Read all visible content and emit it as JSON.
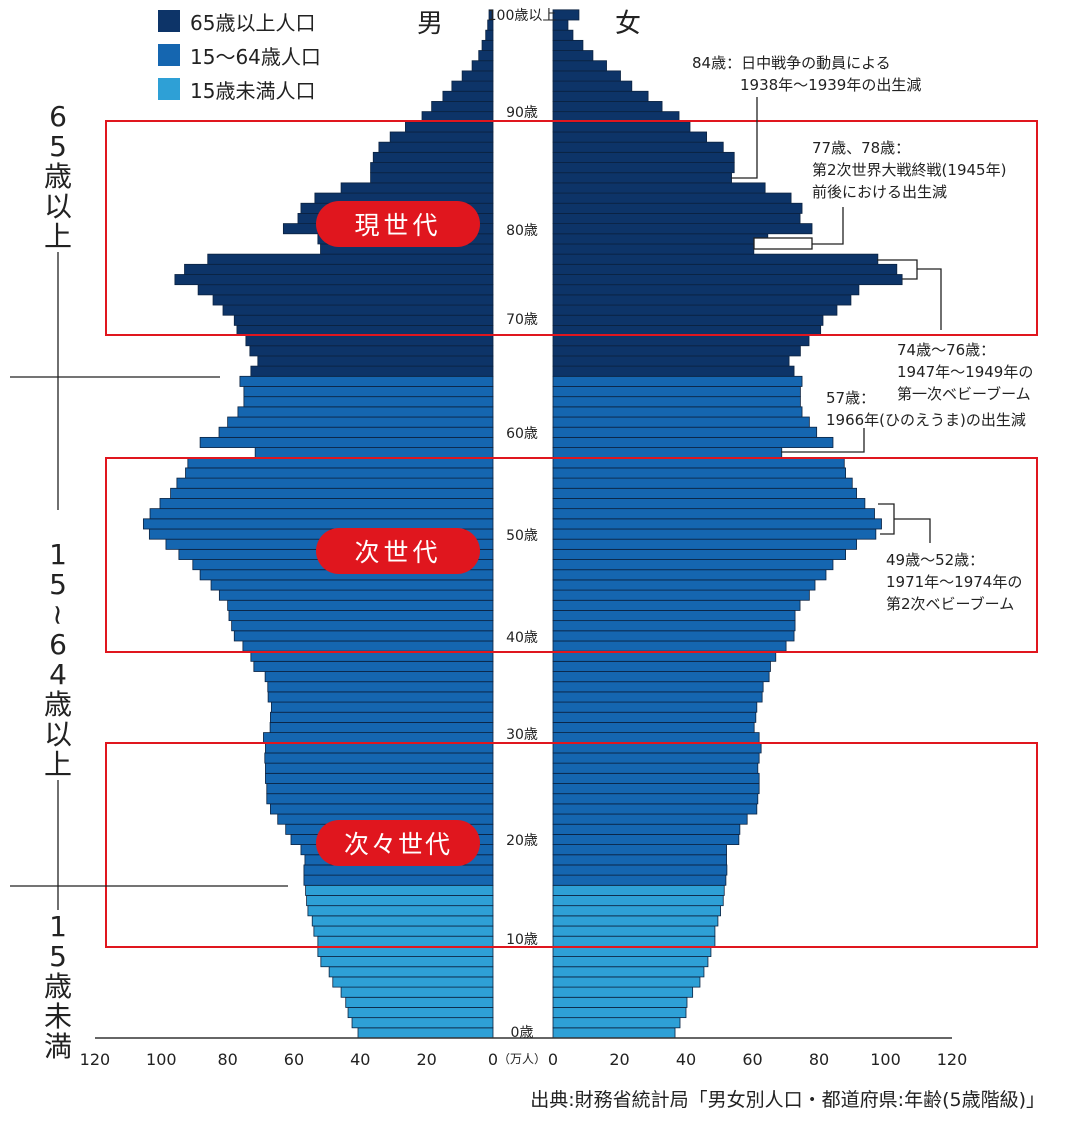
{
  "chart_data": {
    "type": "bar",
    "orientation": "horizontal-population-pyramid",
    "unit_label": "（万人）",
    "xlim": [
      0,
      120
    ],
    "x_ticks": [
      120,
      100,
      80,
      60,
      40,
      20,
      0
    ],
    "x_ticks_female": [
      0,
      20,
      40,
      60,
      80,
      100,
      120
    ],
    "age_tick_labels": [
      "100歳以上",
      "90歳",
      "80歳",
      "70歳",
      "60歳",
      "50歳",
      "40歳",
      "30歳",
      "20歳",
      "10歳",
      "0歳"
    ],
    "male_label": "男",
    "female_label": "女",
    "ages": "0-100",
    "legend": [
      {
        "label": "65歳以上人口",
        "color": "#0d3468"
      },
      {
        "label": "15〜64歳人口",
        "color": "#1566b0"
      },
      {
        "label": "15歳未満人口",
        "color": "#2ea0d6"
      }
    ],
    "legend_position": "top-left",
    "grid": false,
    "male": [
      40.7,
      42.5,
      43.7,
      44.4,
      45.8,
      48.3,
      49.4,
      51.9,
      52.8,
      52.8,
      54.0,
      54.5,
      55.8,
      56.2,
      56.5,
      57.0,
      57.0,
      56.7,
      57.9,
      60.9,
      62.5,
      64.9,
      67.1,
      68.2,
      68.2,
      68.6,
      68.6,
      68.8,
      68.6,
      69.2,
      67.2,
      67.1,
      66.8,
      67.8,
      67.9,
      68.7,
      72.1,
      73.0,
      75.4,
      78.0,
      78.8,
      79.6,
      80.0,
      82.5,
      85.0,
      88.3,
      90.5,
      94.7,
      98.6,
      103.6,
      105.4,
      103.4,
      100.4,
      97.2,
      95.3,
      92.7,
      92.0,
      71.7,
      88.3,
      82.6,
      80.0,
      76.9,
      75.1,
      75.1,
      76.3,
      73.0,
      70.9,
      73.3,
      74.5,
      77.2,
      78.0,
      81.4,
      84.4,
      88.9,
      95.9,
      93.0,
      86.0,
      52.0,
      52.8,
      63.2,
      58.8,
      57.9,
      53.7,
      45.8,
      36.9,
      36.9,
      36.1,
      34.4,
      31.0,
      26.4,
      21.4,
      18.5,
      15.1,
      12.4,
      9.3,
      6.3,
      4.3,
      3.3,
      2.2,
      1.6,
      1.2
    ],
    "female": [
      36.7,
      38.2,
      40.0,
      40.3,
      42.0,
      44.2,
      45.4,
      46.6,
      47.5,
      48.7,
      48.7,
      49.6,
      50.4,
      51.2,
      51.5,
      52.0,
      52.3,
      52.2,
      52.2,
      55.9,
      56.2,
      58.4,
      61.3,
      61.6,
      62.0,
      62.0,
      61.6,
      62.0,
      62.6,
      62.0,
      60.5,
      61.0,
      61.3,
      62.9,
      63.2,
      65.0,
      65.4,
      67.0,
      70.1,
      72.5,
      72.8,
      72.8,
      74.3,
      77.1,
      78.8,
      82.1,
      84.2,
      88.0,
      91.3,
      97.1,
      98.8,
      96.7,
      93.8,
      91.3,
      90.0,
      88.0,
      87.6,
      68.8,
      84.2,
      79.3,
      77.1,
      74.9,
      74.4,
      74.4,
      74.9,
      72.5,
      71.0,
      74.4,
      77.0,
      80.5,
      81.2,
      85.4,
      89.6,
      92.0,
      105.0,
      103.4,
      97.7,
      60.4,
      64.6,
      77.9,
      74.3,
      74.9,
      71.6,
      63.8,
      53.7,
      54.5,
      54.5,
      51.2,
      46.2,
      41.2,
      37.9,
      32.8,
      28.6,
      23.7,
      20.3,
      16.1,
      12.0,
      9.0,
      6.0,
      4.5,
      7.8
    ],
    "age_groups": [
      {
        "label": "65歳以上",
        "from": 65,
        "to": 100,
        "color": "#0d3468"
      },
      {
        "label": "15〜64歳以上",
        "from": 15,
        "to": 64,
        "color": "#1566b0"
      },
      {
        "label": "15歳未満",
        "from": 0,
        "to": 14,
        "color": "#2ea0d6"
      }
    ],
    "generation_labels": [
      "現世代",
      "次世代",
      "次々世代"
    ],
    "annotations": [
      {
        "lines": [
          "84歳：日中戦争の動員による",
          "1938年〜1939年の出生減"
        ]
      },
      {
        "lines": [
          "77歳、78歳：",
          "第2次世界大戦終戦(1945年)",
          "前後における出生減"
        ]
      },
      {
        "lines": [
          "74歳〜76歳：",
          "1947年〜1949年の",
          "第一次ベビーブーム"
        ]
      },
      {
        "lines": [
          "57歳：",
          "1966年(ひのえうま)の出生減"
        ]
      },
      {
        "lines": [
          "49歳〜52歳：",
          "1971年〜1974年の",
          "第2次ベビーブーム"
        ]
      }
    ],
    "source": "出典:財務省統計局「男女別人口・都道府県:年齢(5歳階級)」",
    "highlight_color": "#e0161e"
  }
}
